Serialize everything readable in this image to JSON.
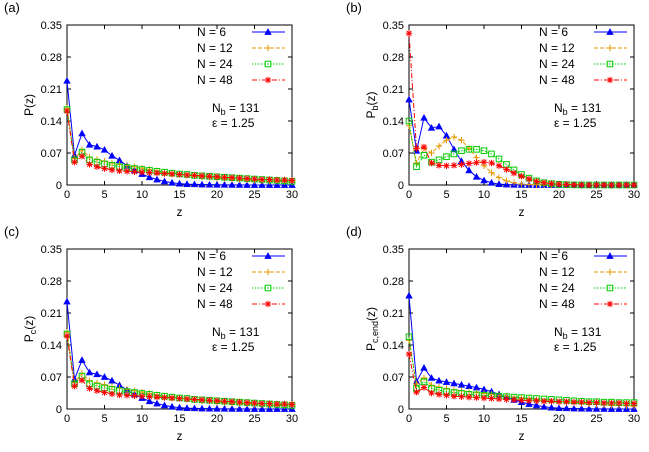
{
  "chart_data": [
    {
      "type": "line",
      "panel_label": "(a)",
      "ylabel_main": "P",
      "ylabel_sub": "",
      "ylabel_tail": "(z)",
      "xlabel": "z",
      "xlim": [
        0,
        30
      ],
      "ylim": [
        0,
        0.35
      ],
      "xticks": [
        0,
        5,
        10,
        15,
        20,
        25,
        30
      ],
      "yticks": [
        0,
        0.07,
        0.14,
        0.21,
        0.28,
        0.35
      ],
      "xtick_labels": [
        "0",
        "5",
        "10",
        "15",
        "20",
        "25",
        "30"
      ],
      "ytick_labels": [
        "0",
        "0.07",
        "0.14",
        "0.21",
        "0.28",
        "0.35"
      ],
      "grid": false,
      "legend_position": "top-right",
      "annotation": {
        "nb_prefix": "N",
        "nb_sub": "b",
        "nb_value": " = 131",
        "eps": "ε = 1.25"
      },
      "series": [
        {
          "name": "N =   6",
          "color": "#0000ff",
          "marker": "triangle",
          "dash": "solid",
          "values": [
            0.228,
            0.065,
            0.113,
            0.088,
            0.084,
            0.077,
            0.064,
            0.054,
            0.042,
            0.032,
            0.024,
            0.017,
            0.012,
            0.008,
            0.005,
            0.003,
            0.002,
            0.0015,
            0.001,
            0.0007,
            0.0005,
            0.0004,
            0.0003,
            0.0002,
            0.0001,
            0.0001,
            0.0001,
            0.0001,
            0.0001,
            0.0001,
            0.0001
          ]
        },
        {
          "name": "N = 12",
          "color": "#e69a00",
          "marker": "plus",
          "dash": "dash",
          "values": [
            0.168,
            0.058,
            0.077,
            0.061,
            0.056,
            0.052,
            0.048,
            0.045,
            0.042,
            0.04,
            0.037,
            0.034,
            0.031,
            0.028,
            0.026,
            0.024,
            0.022,
            0.02,
            0.018,
            0.017,
            0.015,
            0.014,
            0.013,
            0.012,
            0.011,
            0.01,
            0.009,
            0.008,
            0.008,
            0.007,
            0.006
          ]
        },
        {
          "name": "N = 24",
          "color": "#00cc00",
          "marker": "square",
          "dash": "dot",
          "values": [
            0.165,
            0.055,
            0.072,
            0.055,
            0.05,
            0.046,
            0.043,
            0.04,
            0.038,
            0.036,
            0.034,
            0.032,
            0.03,
            0.028,
            0.026,
            0.024,
            0.023,
            0.021,
            0.02,
            0.019,
            0.018,
            0.017,
            0.016,
            0.015,
            0.014,
            0.013,
            0.012,
            0.011,
            0.01,
            0.009,
            0.008
          ]
        },
        {
          "name": "N = 48",
          "color": "#ff0000",
          "marker": "star",
          "dash": "dashdot",
          "values": [
            0.162,
            0.05,
            0.063,
            0.045,
            0.04,
            0.036,
            0.033,
            0.031,
            0.03,
            0.029,
            0.028,
            0.027,
            0.026,
            0.025,
            0.024,
            0.023,
            0.022,
            0.021,
            0.02,
            0.019,
            0.018,
            0.017,
            0.016,
            0.015,
            0.014,
            0.013,
            0.012,
            0.012,
            0.011,
            0.011,
            0.01
          ]
        }
      ]
    },
    {
      "type": "line",
      "panel_label": "(b)",
      "ylabel_main": "P",
      "ylabel_sub": "b",
      "ylabel_tail": "(z)",
      "xlabel": "z",
      "xlim": [
        0,
        30
      ],
      "ylim": [
        0,
        0.35
      ],
      "xticks": [
        0,
        5,
        10,
        15,
        20,
        25,
        30
      ],
      "yticks": [
        0,
        0.07,
        0.14,
        0.21,
        0.28,
        0.35
      ],
      "xtick_labels": [
        "0",
        "5",
        "10",
        "15",
        "20",
        "25",
        "30"
      ],
      "ytick_labels": [
        "0",
        "0.07",
        "0.14",
        "0.21",
        "0.28",
        "0.35"
      ],
      "grid": false,
      "legend_position": "top-right",
      "annotation": {
        "nb_prefix": "N",
        "nb_sub": "b",
        "nb_value": " = 131",
        "eps": "ε = 1.25"
      },
      "series": [
        {
          "name": "N =   6",
          "color": "#0000ff",
          "marker": "triangle",
          "dash": "solid",
          "values": [
            0.187,
            0.075,
            0.147,
            0.125,
            0.128,
            0.108,
            0.078,
            0.052,
            0.032,
            0.018,
            0.01,
            0.005,
            0.002,
            0.001,
            0.0005,
            0.0002,
            0.0001,
            0.0001,
            0,
            0,
            0,
            0,
            0,
            0,
            0,
            0,
            0,
            0,
            0,
            0,
            0
          ]
        },
        {
          "name": "N = 12",
          "color": "#e69a00",
          "marker": "plus",
          "dash": "dash",
          "values": [
            0.13,
            0.048,
            0.08,
            0.07,
            0.085,
            0.098,
            0.105,
            0.098,
            0.08,
            0.06,
            0.042,
            0.027,
            0.016,
            0.009,
            0.005,
            0.002,
            0.001,
            0.0005,
            0.0002,
            0.0001,
            0,
            0,
            0,
            0,
            0,
            0,
            0,
            0,
            0,
            0,
            0
          ]
        },
        {
          "name": "N = 24",
          "color": "#00cc00",
          "marker": "square",
          "dash": "dot",
          "values": [
            0.14,
            0.04,
            0.065,
            0.05,
            0.055,
            0.062,
            0.068,
            0.075,
            0.078,
            0.078,
            0.075,
            0.068,
            0.057,
            0.045,
            0.033,
            0.023,
            0.015,
            0.009,
            0.005,
            0.003,
            0.0015,
            0.0007,
            0.0003,
            0.0001,
            0,
            0,
            0,
            0,
            0,
            0,
            0
          ]
        },
        {
          "name": "N = 48",
          "color": "#ff0000",
          "marker": "star",
          "dash": "dashdot",
          "values": [
            0.332,
            0.08,
            0.083,
            0.048,
            0.043,
            0.042,
            0.043,
            0.045,
            0.047,
            0.049,
            0.05,
            0.048,
            0.042,
            0.034,
            0.026,
            0.019,
            0.013,
            0.008,
            0.005,
            0.003,
            0.002,
            0.001,
            0.0005,
            0.0002,
            0.0001,
            0,
            0,
            0,
            0,
            0,
            0
          ]
        }
      ]
    },
    {
      "type": "line",
      "panel_label": "(c)",
      "ylabel_main": "P",
      "ylabel_sub": "c",
      "ylabel_tail": "(z)",
      "xlabel": "z",
      "xlim": [
        0,
        30
      ],
      "ylim": [
        0,
        0.35
      ],
      "xticks": [
        0,
        5,
        10,
        15,
        20,
        25,
        30
      ],
      "yticks": [
        0,
        0.07,
        0.14,
        0.21,
        0.28,
        0.35
      ],
      "xtick_labels": [
        "0",
        "5",
        "10",
        "15",
        "20",
        "25",
        "30"
      ],
      "ytick_labels": [
        "0",
        "0.07",
        "0.14",
        "0.21",
        "0.28",
        "0.35"
      ],
      "grid": false,
      "legend_position": "top-right",
      "annotation": {
        "nb_prefix": "N",
        "nb_sub": "b",
        "nb_value": " = 131",
        "eps": "ε = 1.25"
      },
      "series": [
        {
          "name": "N =   6",
          "color": "#0000ff",
          "marker": "triangle",
          "dash": "solid",
          "values": [
            0.235,
            0.065,
            0.107,
            0.08,
            0.076,
            0.07,
            0.062,
            0.052,
            0.042,
            0.032,
            0.024,
            0.017,
            0.012,
            0.008,
            0.005,
            0.003,
            0.002,
            0.0015,
            0.001,
            0.0007,
            0.0005,
            0.0004,
            0.0003,
            0.0002,
            0.0001,
            0.0001,
            0.0001,
            0.0001,
            0.0001,
            0.0001,
            0.0001
          ]
        },
        {
          "name": "N = 12",
          "color": "#e69a00",
          "marker": "plus",
          "dash": "dash",
          "values": [
            0.168,
            0.058,
            0.078,
            0.062,
            0.057,
            0.053,
            0.049,
            0.046,
            0.043,
            0.04,
            0.037,
            0.034,
            0.031,
            0.028,
            0.026,
            0.024,
            0.022,
            0.02,
            0.018,
            0.017,
            0.015,
            0.014,
            0.013,
            0.012,
            0.011,
            0.01,
            0.009,
            0.008,
            0.008,
            0.007,
            0.006
          ]
        },
        {
          "name": "N = 24",
          "color": "#00cc00",
          "marker": "square",
          "dash": "dot",
          "values": [
            0.164,
            0.055,
            0.072,
            0.055,
            0.05,
            0.046,
            0.043,
            0.04,
            0.038,
            0.036,
            0.034,
            0.032,
            0.03,
            0.028,
            0.026,
            0.024,
            0.023,
            0.021,
            0.02,
            0.019,
            0.018,
            0.017,
            0.016,
            0.015,
            0.014,
            0.013,
            0.012,
            0.011,
            0.01,
            0.009,
            0.008
          ]
        },
        {
          "name": "N = 48",
          "color": "#ff0000",
          "marker": "star",
          "dash": "dashdot",
          "values": [
            0.16,
            0.05,
            0.063,
            0.045,
            0.04,
            0.036,
            0.033,
            0.031,
            0.03,
            0.029,
            0.028,
            0.027,
            0.026,
            0.025,
            0.024,
            0.023,
            0.022,
            0.021,
            0.02,
            0.019,
            0.018,
            0.017,
            0.016,
            0.015,
            0.014,
            0.013,
            0.012,
            0.012,
            0.011,
            0.011,
            0.01
          ]
        }
      ]
    },
    {
      "type": "line",
      "panel_label": "(d)",
      "ylabel_main": "P",
      "ylabel_sub": "c,end",
      "ylabel_tail": "(z)",
      "xlabel": "z",
      "xlim": [
        0,
        30
      ],
      "ylim": [
        0,
        0.35
      ],
      "xticks": [
        0,
        5,
        10,
        15,
        20,
        25,
        30
      ],
      "yticks": [
        0,
        0.07,
        0.14,
        0.21,
        0.28,
        0.35
      ],
      "xtick_labels": [
        "0",
        "5",
        "10",
        "15",
        "20",
        "25",
        "30"
      ],
      "ytick_labels": [
        "0",
        "0.07",
        "0.14",
        "0.21",
        "0.28",
        "0.35"
      ],
      "grid": false,
      "legend_position": "top-right",
      "annotation": {
        "nb_prefix": "N",
        "nb_sub": "b",
        "nb_value": " = 131",
        "eps": "ε = 1.25"
      },
      "series": [
        {
          "name": "N =   6",
          "color": "#0000ff",
          "marker": "triangle",
          "dash": "solid",
          "values": [
            0.248,
            0.06,
            0.09,
            0.068,
            0.062,
            0.059,
            0.056,
            0.053,
            0.05,
            0.047,
            0.043,
            0.038,
            0.032,
            0.026,
            0.02,
            0.015,
            0.011,
            0.008,
            0.005,
            0.003,
            0.002,
            0.0015,
            0.001,
            0.0007,
            0.0005,
            0.0003,
            0.0002,
            0.0001,
            0.0001,
            0.0001,
            0.0001
          ]
        },
        {
          "name": "N = 12",
          "color": "#e69a00",
          "marker": "plus",
          "dash": "dash",
          "values": [
            0.15,
            0.055,
            0.068,
            0.052,
            0.048,
            0.045,
            0.042,
            0.04,
            0.038,
            0.036,
            0.034,
            0.032,
            0.03,
            0.028,
            0.026,
            0.024,
            0.022,
            0.02,
            0.018,
            0.017,
            0.015,
            0.014,
            0.013,
            0.012,
            0.011,
            0.01,
            0.009,
            0.008,
            0.008,
            0.007,
            0.006
          ]
        },
        {
          "name": "N = 24",
          "color": "#00cc00",
          "marker": "square",
          "dash": "dot",
          "values": [
            0.158,
            0.045,
            0.06,
            0.045,
            0.041,
            0.038,
            0.036,
            0.034,
            0.032,
            0.031,
            0.03,
            0.029,
            0.028,
            0.027,
            0.026,
            0.025,
            0.024,
            0.023,
            0.022,
            0.021,
            0.02,
            0.019,
            0.018,
            0.017,
            0.016,
            0.016,
            0.015,
            0.015,
            0.014,
            0.014,
            0.014
          ]
        },
        {
          "name": "N = 48",
          "color": "#ff0000",
          "marker": "star",
          "dash": "dashdot",
          "values": [
            0.12,
            0.037,
            0.047,
            0.035,
            0.032,
            0.03,
            0.028,
            0.027,
            0.026,
            0.025,
            0.024,
            0.023,
            0.022,
            0.021,
            0.02,
            0.019,
            0.018,
            0.018,
            0.017,
            0.017,
            0.016,
            0.016,
            0.015,
            0.015,
            0.014,
            0.014,
            0.013,
            0.013,
            0.013,
            0.012,
            0.012
          ]
        }
      ]
    }
  ]
}
